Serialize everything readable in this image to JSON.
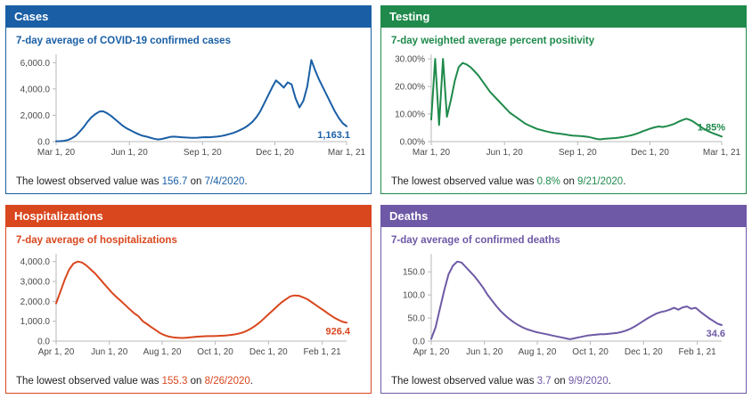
{
  "chart_data": [
    {
      "id": "cases",
      "type": "line",
      "title": "Cases",
      "subtitle": "7-day average of COVID-19 confirmed cases",
      "color": "#1a5fa5",
      "end_label": "1,163.1",
      "ylim": [
        0,
        6500
      ],
      "y_ticks": [
        {
          "value": 0,
          "label": "0.0"
        },
        {
          "value": 2000,
          "label": "2,000.0"
        },
        {
          "value": 4000,
          "label": "4,000.0"
        },
        {
          "value": 6000,
          "label": "6,000.0"
        }
      ],
      "x_ticks": [
        {
          "pos": 0,
          "label": "Mar 1, 20"
        },
        {
          "pos": 0.252,
          "label": "Jun 1, 20"
        },
        {
          "pos": 0.504,
          "label": "Sep 1, 20"
        },
        {
          "pos": 0.753,
          "label": "Dec 1, 20"
        },
        {
          "pos": 1,
          "label": "Mar 1, 21"
        }
      ],
      "values": [
        25,
        35,
        60,
        120,
        250,
        450,
        750,
        1100,
        1500,
        1850,
        2100,
        2280,
        2300,
        2150,
        1950,
        1700,
        1450,
        1200,
        1000,
        850,
        700,
        560,
        450,
        380,
        300,
        220,
        160,
        200,
        280,
        350,
        380,
        360,
        330,
        310,
        300,
        290,
        300,
        320,
        340,
        330,
        350,
        380,
        420,
        480,
        560,
        650,
        760,
        900,
        1050,
        1250,
        1500,
        1850,
        2300,
        2900,
        3500,
        4100,
        4650,
        4400,
        4100,
        4500,
        4350,
        3300,
        2600,
        3100,
        4200,
        6200,
        5400,
        4700,
        4100,
        3500,
        2900,
        2300,
        1800,
        1400,
        1163.1
      ],
      "note": {
        "prefix": "The lowest observed value was ",
        "value": "156.7",
        "mid": " on ",
        "date": "7/4/2020",
        "suffix": "."
      }
    },
    {
      "id": "testing",
      "type": "line",
      "title": "Testing",
      "subtitle": "7-day weighted average percent positivity",
      "color": "#1f8a4b",
      "end_label": "1.85%",
      "ylim": [
        0,
        31
      ],
      "y_ticks": [
        {
          "value": 0,
          "label": "0.00%"
        },
        {
          "value": 10,
          "label": "10.00%"
        },
        {
          "value": 20,
          "label": "20.00%"
        },
        {
          "value": 30,
          "label": "30.00%"
        }
      ],
      "x_ticks": [
        {
          "pos": 0,
          "label": "Mar 1, 20"
        },
        {
          "pos": 0.252,
          "label": "Jun 1, 20"
        },
        {
          "pos": 0.504,
          "label": "Sep 1, 20"
        },
        {
          "pos": 0.753,
          "label": "Dec 1, 20"
        },
        {
          "pos": 1,
          "label": "Mar 1, 21"
        }
      ],
      "values": [
        8,
        30,
        6,
        30,
        9,
        15,
        22,
        27,
        28.5,
        28,
        27,
        25.5,
        24,
        22,
        20,
        18,
        16.5,
        15,
        13.5,
        12,
        10.5,
        9.5,
        8.5,
        7.5,
        6.5,
        5.8,
        5.2,
        4.6,
        4.2,
        3.8,
        3.5,
        3.2,
        3,
        2.8,
        2.6,
        2.4,
        2.2,
        2.1,
        2,
        1.9,
        1.7,
        1.4,
        1,
        0.8,
        1,
        1.1,
        1.2,
        1.3,
        1.5,
        1.7,
        2,
        2.3,
        2.7,
        3.2,
        3.8,
        4.3,
        4.8,
        5.2,
        5.5,
        5.3,
        5.6,
        6,
        6.5,
        7.2,
        7.8,
        8.3,
        7.8,
        7,
        6,
        5,
        4.2,
        3.5,
        2.9,
        2.4,
        1.85
      ],
      "note": {
        "prefix": "The lowest observed value was ",
        "value": "0.8%",
        "mid": " on ",
        "date": "9/21/2020",
        "suffix": "."
      }
    },
    {
      "id": "hospitalizations",
      "type": "line",
      "title": "Hospitalizations",
      "subtitle": "7-day average of hospitalizations",
      "color": "#d9471e",
      "end_label": "926.4",
      "ylim": [
        0,
        4300
      ],
      "y_ticks": [
        {
          "value": 0,
          "label": "0.0"
        },
        {
          "value": 1000,
          "label": "1,000.0"
        },
        {
          "value": 2000,
          "label": "2,000.0"
        },
        {
          "value": 3000,
          "label": "3,000.0"
        },
        {
          "value": 4000,
          "label": "4,000.0"
        }
      ],
      "x_ticks": [
        {
          "pos": 0,
          "label": "Apr 1, 20"
        },
        {
          "pos": 0.183,
          "label": "Jun 1, 20"
        },
        {
          "pos": 0.365,
          "label": "Aug 1, 20"
        },
        {
          "pos": 0.548,
          "label": "Oct 1, 20"
        },
        {
          "pos": 0.731,
          "label": "Dec 1, 20"
        },
        {
          "pos": 0.916,
          "label": "Feb 1, 21"
        }
      ],
      "values": [
        1900,
        2500,
        3100,
        3600,
        3900,
        4000,
        3950,
        3800,
        3600,
        3400,
        3150,
        2900,
        2650,
        2400,
        2200,
        2000,
        1800,
        1600,
        1400,
        1250,
        1000,
        850,
        700,
        550,
        400,
        300,
        230,
        190,
        170,
        158,
        170,
        190,
        210,
        230,
        240,
        250,
        250,
        260,
        270,
        280,
        300,
        330,
        370,
        430,
        520,
        640,
        780,
        950,
        1150,
        1350,
        1550,
        1750,
        1950,
        2100,
        2250,
        2300,
        2280,
        2200,
        2100,
        1950,
        1800,
        1650,
        1500,
        1350,
        1200,
        1080,
        980,
        926.4
      ],
      "note": {
        "prefix": "The lowest observed value was ",
        "value": "155.3",
        "mid": " on ",
        "date": "8/26/2020",
        "suffix": "."
      }
    },
    {
      "id": "deaths",
      "type": "line",
      "title": "Deaths",
      "subtitle": "7-day average of confirmed deaths",
      "color": "#6e59a6",
      "end_label": "34.6",
      "ylim": [
        0,
        185
      ],
      "y_ticks": [
        {
          "value": 0,
          "label": "0.0"
        },
        {
          "value": 50,
          "label": "50.0"
        },
        {
          "value": 100,
          "label": "100.0"
        },
        {
          "value": 150,
          "label": "150.0"
        }
      ],
      "x_ticks": [
        {
          "pos": 0,
          "label": "Apr 1, 20"
        },
        {
          "pos": 0.183,
          "label": "Jun 1, 20"
        },
        {
          "pos": 0.365,
          "label": "Aug 1, 20"
        },
        {
          "pos": 0.548,
          "label": "Oct 1, 20"
        },
        {
          "pos": 0.731,
          "label": "Dec 1, 20"
        },
        {
          "pos": 0.916,
          "label": "Feb 1, 21"
        }
      ],
      "values": [
        5,
        30,
        70,
        110,
        145,
        163,
        172,
        170,
        160,
        150,
        140,
        128,
        115,
        100,
        88,
        76,
        65,
        56,
        48,
        41,
        35,
        30,
        26,
        23,
        20,
        18,
        16,
        14,
        12,
        10,
        8,
        6,
        4,
        6,
        8,
        10,
        12,
        13,
        14,
        15,
        15,
        16,
        17,
        18,
        20,
        23,
        27,
        32,
        38,
        44,
        50,
        55,
        60,
        63,
        65,
        68,
        72,
        68,
        73,
        75,
        70,
        72,
        64,
        57,
        50,
        44,
        38,
        34.6
      ],
      "note": {
        "prefix": "The lowest observed value was ",
        "value": "3.7",
        "mid": " on ",
        "date": "9/9/2020",
        "suffix": "."
      }
    }
  ]
}
